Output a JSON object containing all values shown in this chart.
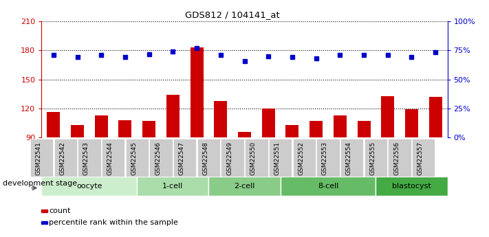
{
  "title": "GDS812 / 104141_at",
  "samples": [
    "GSM22541",
    "GSM22542",
    "GSM22543",
    "GSM22544",
    "GSM22545",
    "GSM22546",
    "GSM22547",
    "GSM22548",
    "GSM22549",
    "GSM22550",
    "GSM22551",
    "GSM22552",
    "GSM22553",
    "GSM22554",
    "GSM22555",
    "GSM22556",
    "GSM22557"
  ],
  "counts": [
    116,
    103,
    113,
    108,
    107,
    134,
    183,
    128,
    96,
    120,
    103,
    107,
    113,
    107,
    133,
    119,
    132
  ],
  "percentile_ranks": [
    175,
    173,
    175,
    173,
    176,
    179,
    182,
    175,
    169,
    174,
    173,
    172,
    175,
    175,
    175,
    173,
    178
  ],
  "ymin": 90,
  "ymax": 210,
  "yticks_left": [
    90,
    120,
    150,
    180,
    210
  ],
  "right_ytick_pct": [
    0,
    25,
    50,
    75,
    100
  ],
  "bar_color": "#cc0000",
  "dot_color": "#0000cc",
  "bar_width": 0.55,
  "stages": [
    {
      "label": "oocyte",
      "start": 0,
      "end": 3,
      "color": "#cceecc"
    },
    {
      "label": "1-cell",
      "start": 4,
      "end": 6,
      "color": "#aaddaa"
    },
    {
      "label": "2-cell",
      "start": 7,
      "end": 9,
      "color": "#88cc88"
    },
    {
      "label": "8-cell",
      "start": 10,
      "end": 13,
      "color": "#66bb66"
    },
    {
      "label": "blastocyst",
      "start": 14,
      "end": 16,
      "color": "#44aa44"
    }
  ],
  "xlabel_dev": "development stage",
  "legend_count_label": "count",
  "legend_pct_label": "percentile rank within the sample",
  "bg_color": "#ffffff",
  "tick_color_left": "#cc0000",
  "tick_color_right": "#0000cc",
  "xtick_bg": "#cccccc",
  "grid_color": "#000000"
}
